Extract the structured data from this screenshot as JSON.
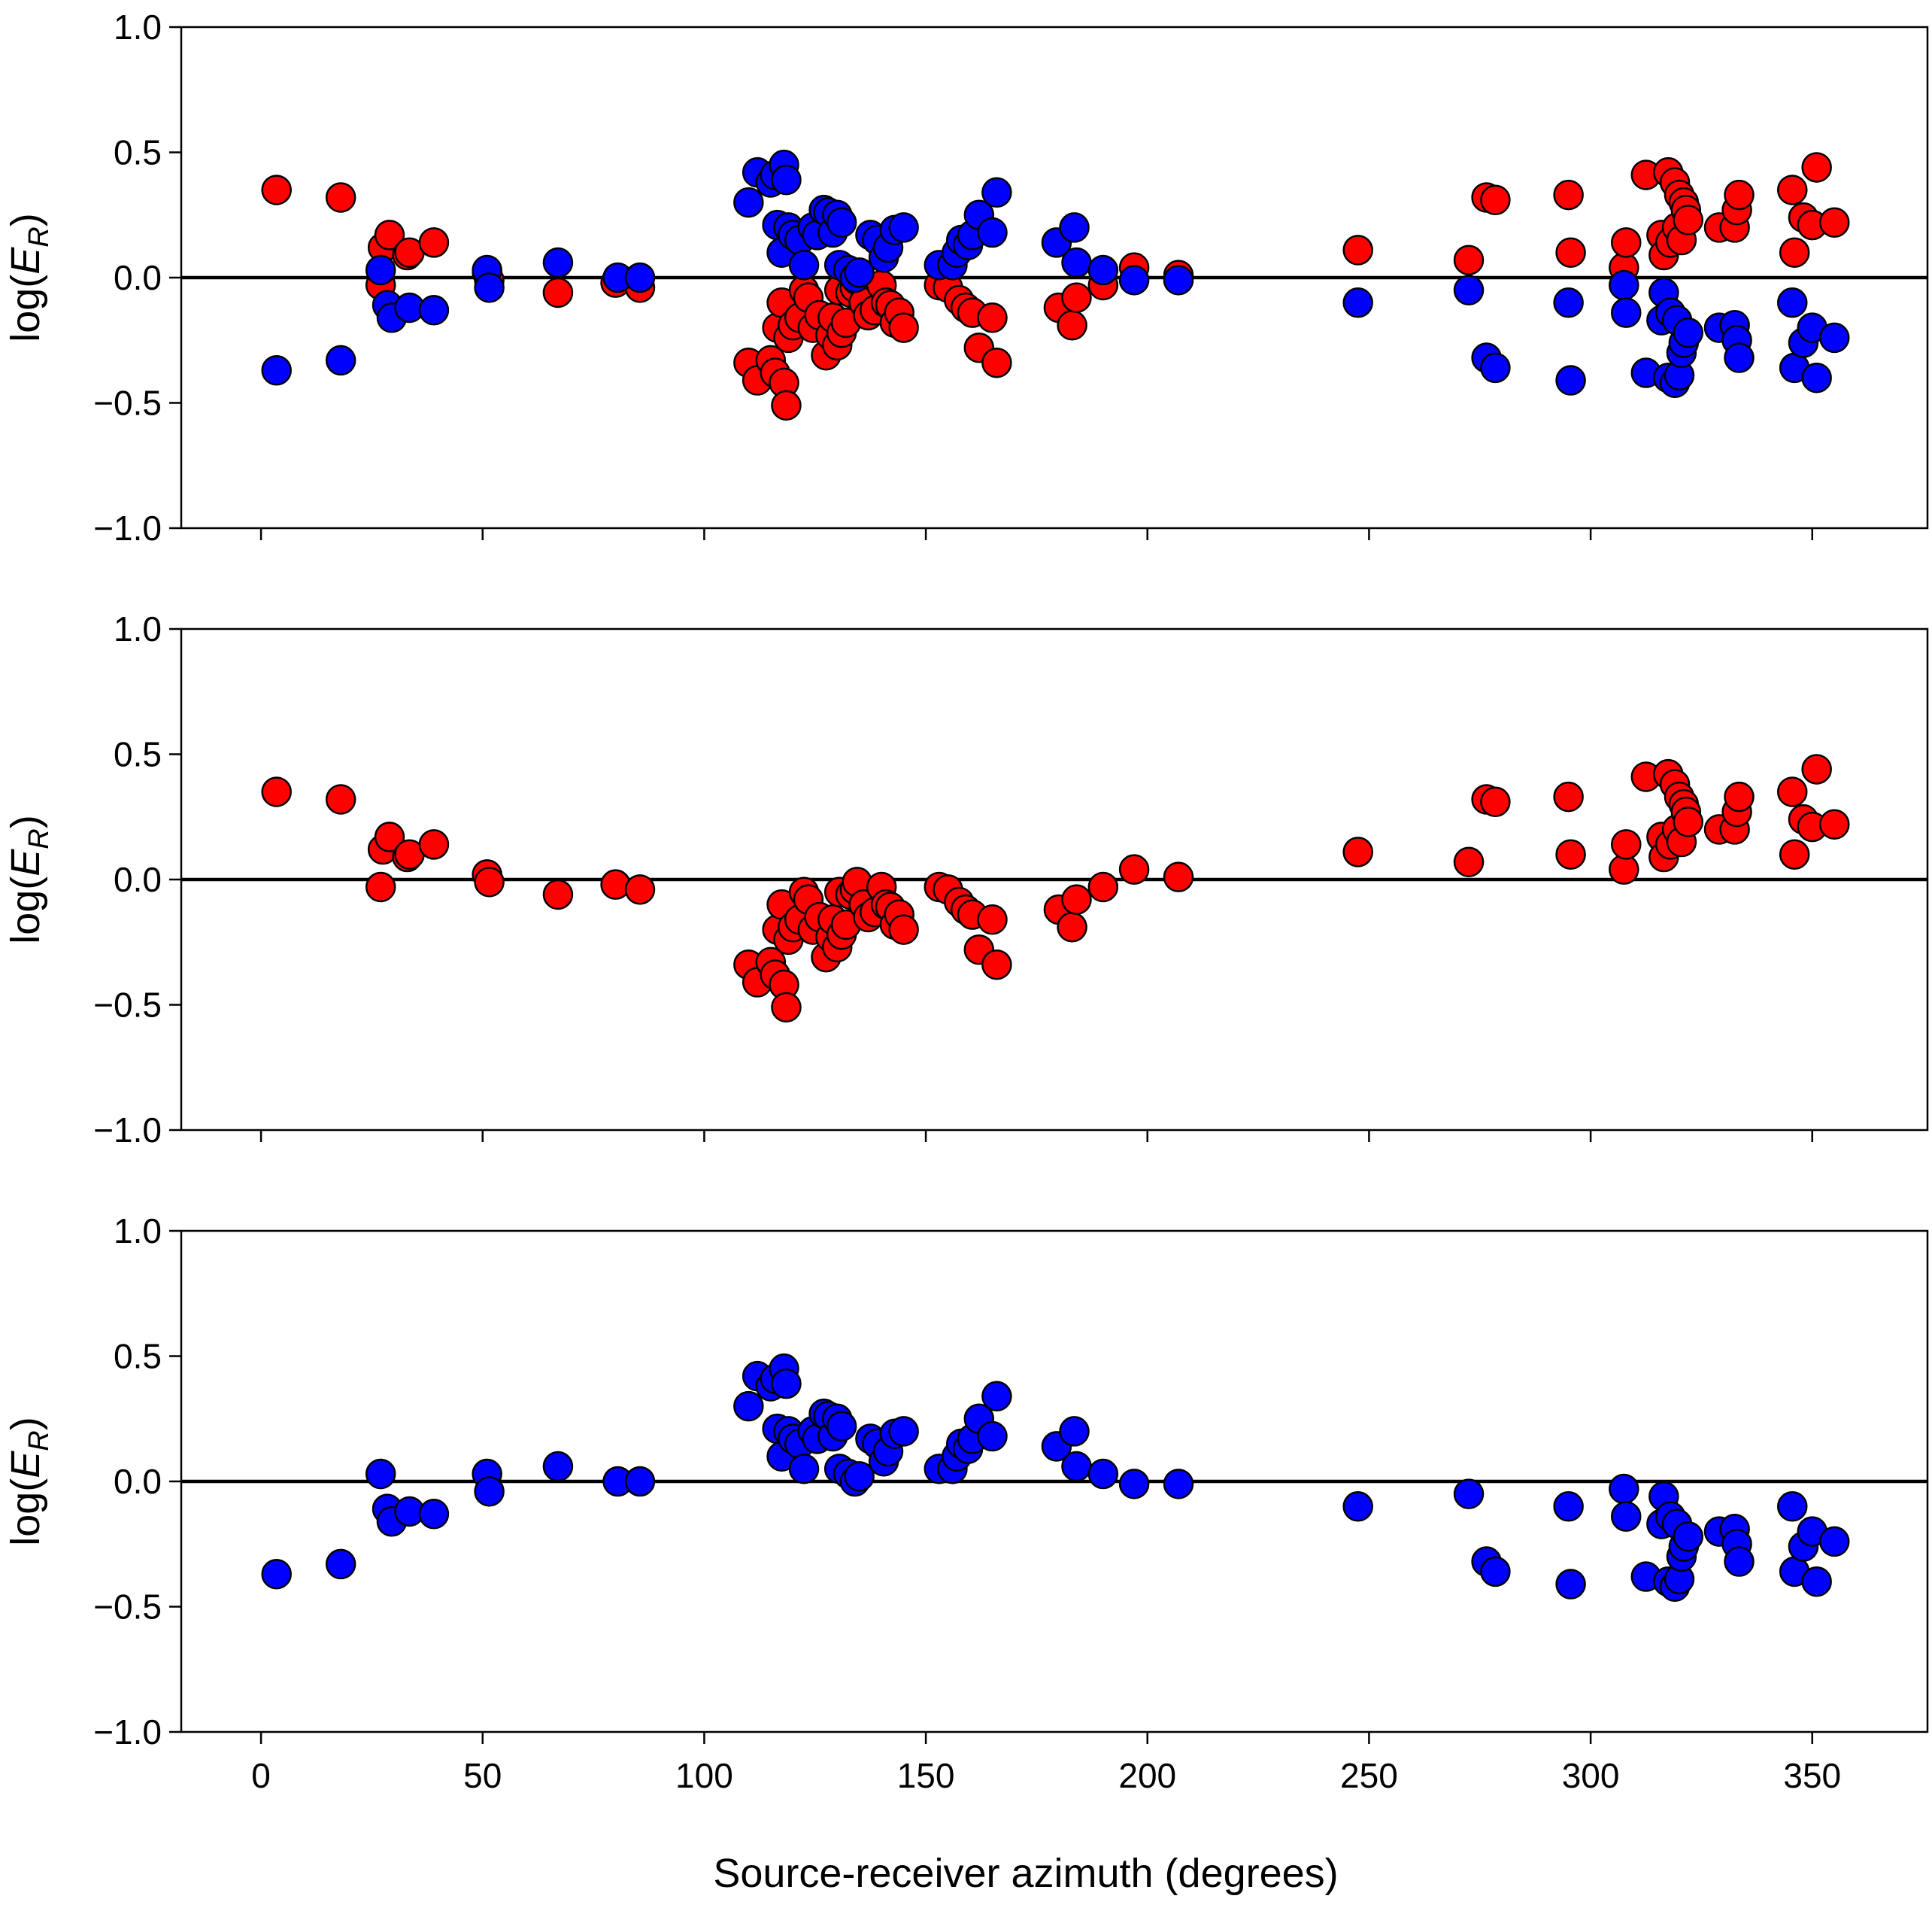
{
  "colors": {
    "red_marker": "#ff0000",
    "blue_marker": "#0000ff",
    "edge": "#000000"
  },
  "chart_data": {
    "type": "scatter",
    "xlabel": "Source-receiver azimuth (degrees)",
    "ylabel_prefix": "log(",
    "ylabel_var": "E",
    "ylabel_sub": "R",
    "ylabel_suffix": ")",
    "xlim": [
      -18,
      376
    ],
    "ylim": [
      -1.0,
      1.0
    ],
    "x_ticks": [
      0,
      50,
      100,
      150,
      200,
      250,
      300,
      350
    ],
    "x_tick_labels": [
      "0",
      "50",
      "100",
      "150",
      "200",
      "250",
      "300",
      "350"
    ],
    "y_ticks": [
      1.0,
      0.5,
      0.0,
      -0.5,
      -1.0
    ],
    "y_tick_labels": [
      "1.0",
      "0.5",
      "0.0",
      "−0.5",
      "−1.0"
    ],
    "reference_line_y": 0.0,
    "red_points": [
      [
        3.5,
        0.35
      ],
      [
        18,
        0.32
      ],
      [
        27,
        -0.03
      ],
      [
        27.5,
        0.12
      ],
      [
        29,
        0.17
      ],
      [
        33,
        0.09
      ],
      [
        33.5,
        0.1
      ],
      [
        39,
        0.14
      ],
      [
        51,
        0.02
      ],
      [
        51.5,
        -0.01
      ],
      [
        67,
        -0.06
      ],
      [
        80,
        -0.02
      ],
      [
        85.5,
        -0.04
      ],
      [
        110,
        -0.34
      ],
      [
        112,
        -0.41
      ],
      [
        115,
        -0.33
      ],
      [
        116,
        -0.38
      ],
      [
        116.5,
        -0.2
      ],
      [
        117.5,
        -0.1
      ],
      [
        118,
        -0.42
      ],
      [
        118.5,
        -0.51
      ],
      [
        119,
        -0.24
      ],
      [
        120,
        -0.19
      ],
      [
        121.5,
        -0.16
      ],
      [
        122.5,
        -0.05
      ],
      [
        123.5,
        -0.08
      ],
      [
        124.5,
        -0.2
      ],
      [
        126,
        -0.15
      ],
      [
        127.5,
        -0.31
      ],
      [
        128.5,
        -0.23
      ],
      [
        129,
        -0.16
      ],
      [
        130,
        -0.27
      ],
      [
        130.5,
        -0.05
      ],
      [
        131,
        -0.22
      ],
      [
        132,
        -0.18
      ],
      [
        133,
        -0.06
      ],
      [
        134,
        -0.04
      ],
      [
        134.5,
        -0.01
      ],
      [
        136,
        -0.1
      ],
      [
        137,
        -0.15
      ],
      [
        138.5,
        -0.13
      ],
      [
        140,
        -0.03
      ],
      [
        141,
        -0.1
      ],
      [
        142,
        -0.11
      ],
      [
        143,
        -0.18
      ],
      [
        144,
        -0.14
      ],
      [
        145,
        -0.2
      ],
      [
        153,
        -0.03
      ],
      [
        155,
        -0.04
      ],
      [
        157.5,
        -0.09
      ],
      [
        159,
        -0.12
      ],
      [
        160.5,
        -0.14
      ],
      [
        162,
        -0.28
      ],
      [
        165,
        -0.16
      ],
      [
        166,
        -0.34
      ],
      [
        180,
        -0.12
      ],
      [
        183,
        -0.19
      ],
      [
        184,
        -0.08
      ],
      [
        190,
        -0.03
      ],
      [
        197,
        0.04
      ],
      [
        207,
        0.01
      ],
      [
        247.5,
        0.11
      ],
      [
        272.5,
        0.07
      ],
      [
        276.5,
        0.32
      ],
      [
        278.5,
        0.31
      ],
      [
        295,
        0.33
      ],
      [
        295.5,
        0.1
      ],
      [
        307.5,
        0.04
      ],
      [
        308,
        0.14
      ],
      [
        312.5,
        0.41
      ],
      [
        316,
        0.17
      ],
      [
        316.5,
        0.09
      ],
      [
        317.5,
        0.42
      ],
      [
        318,
        0.14
      ],
      [
        319,
        0.38
      ],
      [
        319.5,
        0.2
      ],
      [
        320,
        0.33
      ],
      [
        320.5,
        0.15
      ],
      [
        321,
        0.3
      ],
      [
        321.5,
        0.27
      ],
      [
        322,
        0.23
      ],
      [
        329,
        0.2
      ],
      [
        332.5,
        0.2
      ],
      [
        333,
        0.27
      ],
      [
        333.5,
        0.33
      ],
      [
        345.5,
        0.35
      ],
      [
        346,
        0.1
      ],
      [
        348,
        0.24
      ],
      [
        350,
        0.21
      ],
      [
        351,
        0.44
      ],
      [
        355,
        0.22
      ]
    ],
    "blue_points": [
      [
        3.5,
        -0.37
      ],
      [
        18,
        -0.33
      ],
      [
        27,
        0.03
      ],
      [
        28.5,
        -0.11
      ],
      [
        29.5,
        -0.16
      ],
      [
        33.5,
        -0.12
      ],
      [
        39,
        -0.13
      ],
      [
        51,
        0.03
      ],
      [
        51.5,
        -0.04
      ],
      [
        67,
        0.06
      ],
      [
        80.5,
        0.0
      ],
      [
        85.5,
        0.0
      ],
      [
        110,
        0.3
      ],
      [
        112,
        0.42
      ],
      [
        115,
        0.38
      ],
      [
        116,
        0.41
      ],
      [
        116.5,
        0.21
      ],
      [
        117.5,
        0.1
      ],
      [
        118,
        0.45
      ],
      [
        118.5,
        0.39
      ],
      [
        119,
        0.2
      ],
      [
        120,
        0.17
      ],
      [
        121.5,
        0.15
      ],
      [
        122.5,
        0.05
      ],
      [
        124.5,
        0.2
      ],
      [
        125.5,
        0.17
      ],
      [
        127,
        0.27
      ],
      [
        128,
        0.26
      ],
      [
        129,
        0.18
      ],
      [
        130,
        0.25
      ],
      [
        130.5,
        0.05
      ],
      [
        131,
        0.22
      ],
      [
        132.5,
        0.03
      ],
      [
        134,
        0.0
      ],
      [
        135,
        0.02
      ],
      [
        137.5,
        0.17
      ],
      [
        139,
        0.15
      ],
      [
        140.5,
        0.08
      ],
      [
        141.5,
        0.12
      ],
      [
        143,
        0.19
      ],
      [
        145,
        0.2
      ],
      [
        153,
        0.05
      ],
      [
        156,
        0.05
      ],
      [
        157,
        0.1
      ],
      [
        158,
        0.15
      ],
      [
        159.5,
        0.13
      ],
      [
        160.5,
        0.17
      ],
      [
        162,
        0.25
      ],
      [
        165,
        0.18
      ],
      [
        166,
        0.34
      ],
      [
        179.5,
        0.14
      ],
      [
        183.5,
        0.2
      ],
      [
        184,
        0.06
      ],
      [
        190,
        0.03
      ],
      [
        197,
        -0.01
      ],
      [
        207,
        -0.01
      ],
      [
        247.5,
        -0.1
      ],
      [
        272.5,
        -0.05
      ],
      [
        276.5,
        -0.32
      ],
      [
        278.5,
        -0.36
      ],
      [
        295,
        -0.1
      ],
      [
        295.5,
        -0.41
      ],
      [
        307.5,
        -0.03
      ],
      [
        308,
        -0.14
      ],
      [
        312.5,
        -0.38
      ],
      [
        316,
        -0.17
      ],
      [
        316.5,
        -0.06
      ],
      [
        317.5,
        -0.4
      ],
      [
        318,
        -0.14
      ],
      [
        319,
        -0.42
      ],
      [
        319.5,
        -0.17
      ],
      [
        320,
        -0.39
      ],
      [
        320.5,
        -0.3
      ],
      [
        321,
        -0.26
      ],
      [
        322,
        -0.22
      ],
      [
        329,
        -0.2
      ],
      [
        332.5,
        -0.19
      ],
      [
        333,
        -0.25
      ],
      [
        333.5,
        -0.32
      ],
      [
        345.5,
        -0.1
      ],
      [
        346,
        -0.36
      ],
      [
        348,
        -0.26
      ],
      [
        350,
        -0.2
      ],
      [
        351,
        -0.4
      ],
      [
        355,
        -0.24
      ]
    ],
    "panels": [
      {
        "series": [
          "red_points",
          "blue_points"
        ],
        "x_tick_labels_visible": false
      },
      {
        "series": [
          "red_points"
        ],
        "x_tick_labels_visible": false
      },
      {
        "series": [
          "blue_points"
        ],
        "x_tick_labels_visible": true
      }
    ]
  }
}
